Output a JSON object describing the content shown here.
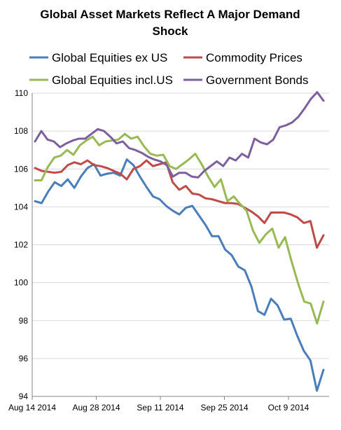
{
  "chart_data": {
    "type": "line",
    "title_line1": "Global Asset Markets Reflect A Major Demand",
    "title_line2": "Shock",
    "xlabel": "",
    "ylabel": "",
    "ylim": [
      94,
      110
    ],
    "y_ticks": [
      94,
      96,
      98,
      100,
      102,
      104,
      106,
      108,
      110
    ],
    "x_tick_labels": [
      "Aug 14 2014",
      "Aug 28 2014",
      "Sep 11 2014",
      "Sep 25 2014",
      "Oct 9 2014"
    ],
    "grid": "horizontal",
    "legend_position": "top",
    "series": [
      {
        "name": "Global Equities ex US",
        "color": "#4a7ebb",
        "values": [
          104.3,
          104.2,
          104.8,
          105.3,
          105.1,
          105.45,
          105.0,
          105.6,
          106.05,
          106.25,
          105.65,
          105.75,
          105.8,
          105.65,
          106.5,
          106.2,
          105.6,
          105.05,
          104.55,
          104.4,
          104.05,
          103.8,
          103.6,
          103.95,
          104.05,
          103.55,
          103.05,
          102.45,
          102.45,
          101.75,
          101.45,
          100.85,
          100.65,
          99.8,
          98.5,
          98.3,
          99.15,
          98.8,
          98.05,
          98.1,
          97.2,
          96.4,
          95.9,
          94.3,
          95.4
        ]
      },
      {
        "name": "Commodity Prices",
        "color": "#be4b48",
        "values": [
          106.05,
          105.9,
          105.85,
          105.8,
          105.85,
          106.2,
          106.35,
          106.25,
          106.45,
          106.2,
          106.15,
          106.05,
          105.9,
          105.75,
          105.45,
          106.0,
          106.15,
          106.45,
          106.15,
          106.25,
          106.35,
          105.3,
          104.9,
          105.1,
          104.7,
          104.65,
          104.45,
          104.4,
          104.3,
          104.2,
          104.2,
          104.15,
          103.95,
          103.75,
          103.5,
          103.15,
          103.7,
          103.7,
          103.7,
          103.6,
          103.45,
          103.15,
          103.25,
          101.85,
          102.5
        ]
      },
      {
        "name": "Global Equities incl.US",
        "color": "#98b954",
        "values": [
          105.4,
          105.4,
          106.1,
          106.6,
          106.7,
          107.0,
          106.75,
          107.25,
          107.5,
          107.7,
          107.25,
          107.45,
          107.5,
          107.55,
          107.85,
          107.6,
          107.7,
          107.2,
          106.8,
          106.7,
          106.75,
          106.15,
          106.0,
          106.25,
          106.5,
          106.8,
          106.25,
          105.6,
          105.05,
          105.45,
          104.3,
          104.55,
          104.15,
          103.8,
          102.75,
          102.1,
          102.55,
          102.85,
          101.85,
          102.4,
          101.15,
          100.0,
          99.0,
          98.9,
          97.85,
          99.0
        ]
      },
      {
        "name": "Government Bonds",
        "color": "#7d5fa0",
        "values": [
          107.45,
          108.0,
          107.55,
          107.45,
          107.15,
          107.35,
          107.5,
          107.6,
          107.6,
          107.85,
          108.1,
          108.0,
          107.7,
          107.35,
          107.45,
          107.1,
          107.0,
          106.85,
          106.65,
          106.5,
          106.4,
          106.2,
          105.6,
          105.8,
          105.8,
          105.6,
          105.55,
          105.9,
          106.15,
          106.4,
          106.15,
          106.6,
          106.45,
          106.8,
          106.6,
          107.6,
          107.4,
          107.3,
          107.55,
          108.2,
          108.3,
          108.45,
          108.75,
          109.2,
          109.7,
          110.05,
          109.6
        ]
      }
    ]
  }
}
